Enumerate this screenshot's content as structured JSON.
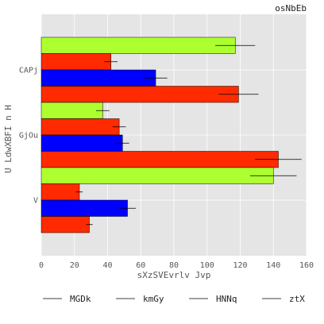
{
  "chart_data": {
    "type": "bar",
    "orientation": "horizontal",
    "title": "osNbEb",
    "xlabel": "sXzSVEvrlv Jvp",
    "ylabel": "U LdwXBFI n H",
    "xlim": [
      0,
      160
    ],
    "x_ticks": [
      "0",
      "20",
      "40",
      "60",
      "80",
      "100",
      "120",
      "140",
      "160"
    ],
    "categories": [
      "CAPj",
      "GjOu",
      "V"
    ],
    "series": [
      {
        "name": "MGDk",
        "color": "#adff2f",
        "values": [
          117,
          37,
          140
        ],
        "errors": [
          12,
          4,
          14
        ]
      },
      {
        "name": "kmGy",
        "color": "#ff2a00",
        "values": [
          42,
          47,
          23
        ],
        "errors": [
          4,
          4,
          2
        ]
      },
      {
        "name": "HNNq",
        "color": "#0000ff",
        "values": [
          69,
          49,
          52
        ],
        "errors": [
          7,
          4,
          5
        ]
      },
      {
        "name": "ztX",
        "color": "#ff2a00",
        "values": [
          119,
          143,
          29
        ],
        "errors": [
          12,
          14,
          2
        ]
      }
    ],
    "grid": true,
    "legend_position": "bottom"
  }
}
